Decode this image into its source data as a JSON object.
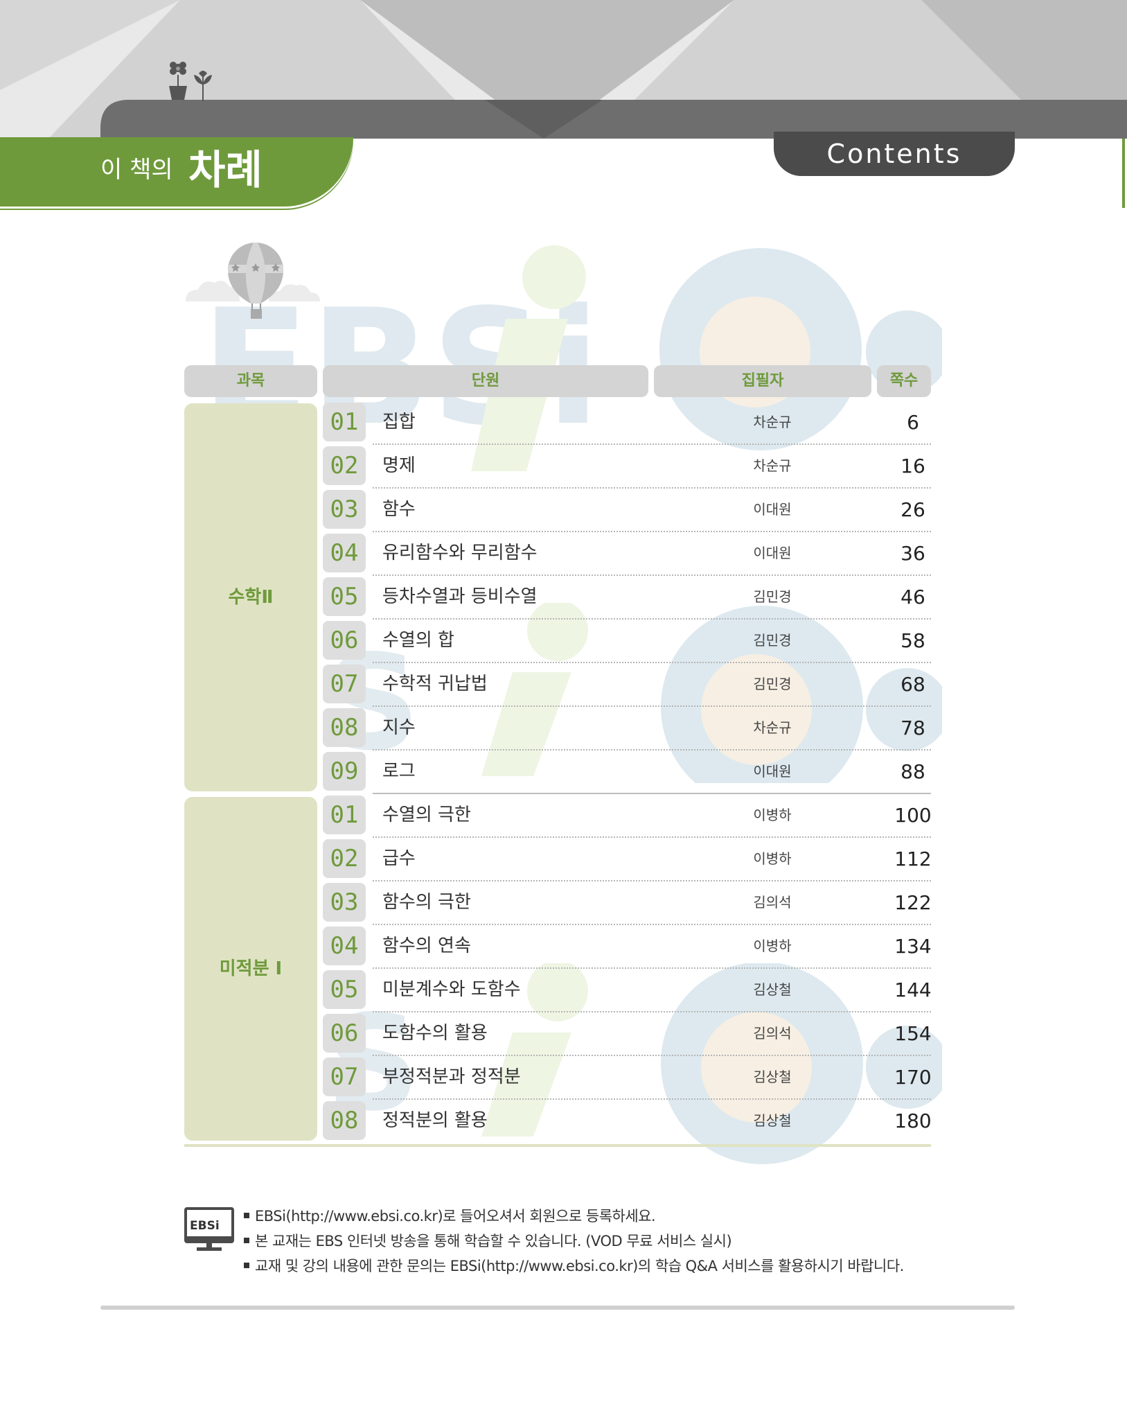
{
  "header": {
    "title_small": "이 책의",
    "title_big": "차례",
    "contents_label": "Contents"
  },
  "watermark": {
    "text": "EBSi"
  },
  "table": {
    "columns": [
      "과목",
      "단원",
      "집필자",
      "쪽수"
    ],
    "groups": [
      {
        "subject": "수학Ⅱ",
        "rows": [
          {
            "num": "01",
            "title": "집합",
            "author": "차순규",
            "page": "6"
          },
          {
            "num": "02",
            "title": "명제",
            "author": "차순규",
            "page": "16"
          },
          {
            "num": "03",
            "title": "함수",
            "author": "이대원",
            "page": "26"
          },
          {
            "num": "04",
            "title": "유리함수와 무리함수",
            "author": "이대원",
            "page": "36"
          },
          {
            "num": "05",
            "title": "등차수열과 등비수열",
            "author": "김민경",
            "page": "46"
          },
          {
            "num": "06",
            "title": "수열의 합",
            "author": "김민경",
            "page": "58"
          },
          {
            "num": "07",
            "title": "수학적 귀납법",
            "author": "김민경",
            "page": "68"
          },
          {
            "num": "08",
            "title": "지수",
            "author": "차순규",
            "page": "78"
          },
          {
            "num": "09",
            "title": "로그",
            "author": "이대원",
            "page": "88"
          }
        ]
      },
      {
        "subject": "미적분 Ⅰ",
        "rows": [
          {
            "num": "01",
            "title": "수열의 극한",
            "author": "이병하",
            "page": "100"
          },
          {
            "num": "02",
            "title": "급수",
            "author": "이병하",
            "page": "112"
          },
          {
            "num": "03",
            "title": "함수의 극한",
            "author": "김의석",
            "page": "122"
          },
          {
            "num": "04",
            "title": "함수의 연속",
            "author": "이병하",
            "page": "134"
          },
          {
            "num": "05",
            "title": "미분계수와 도함수",
            "author": "김상철",
            "page": "144"
          },
          {
            "num": "06",
            "title": "도함수의 활용",
            "author": "김의석",
            "page": "154"
          },
          {
            "num": "07",
            "title": "부정적분과 정적분",
            "author": "김상철",
            "page": "170"
          },
          {
            "num": "08",
            "title": "정적분의 활용",
            "author": "김상철",
            "page": "180"
          }
        ]
      }
    ]
  },
  "footer": {
    "icon_label": "EBSi",
    "notes": [
      "EBSi(http://www.ebsi.co.kr)로 들어오셔서 회원으로 등록하세요.",
      "본 교재는 EBS 인터넷 방송을 통해 학습할 수 있습니다. (VOD 무료 서비스 실시)",
      "교재 및 강의 내용에 관한 문의는 EBSi(http://www.ebsi.co.kr)의 학습 Q&A 서비스를 활용하시기 바랍니다."
    ]
  },
  "colors": {
    "accent_green": "#6f9a3c",
    "group_fill": "#dfe3c3",
    "header_gray": "#4b4b4b",
    "cell_gray": "#d4d4d4"
  },
  "icons": [
    "flower-pot-icon",
    "sprout-icon",
    "hot-air-balloon-icon",
    "cloud-icon",
    "monitor-icon"
  ]
}
